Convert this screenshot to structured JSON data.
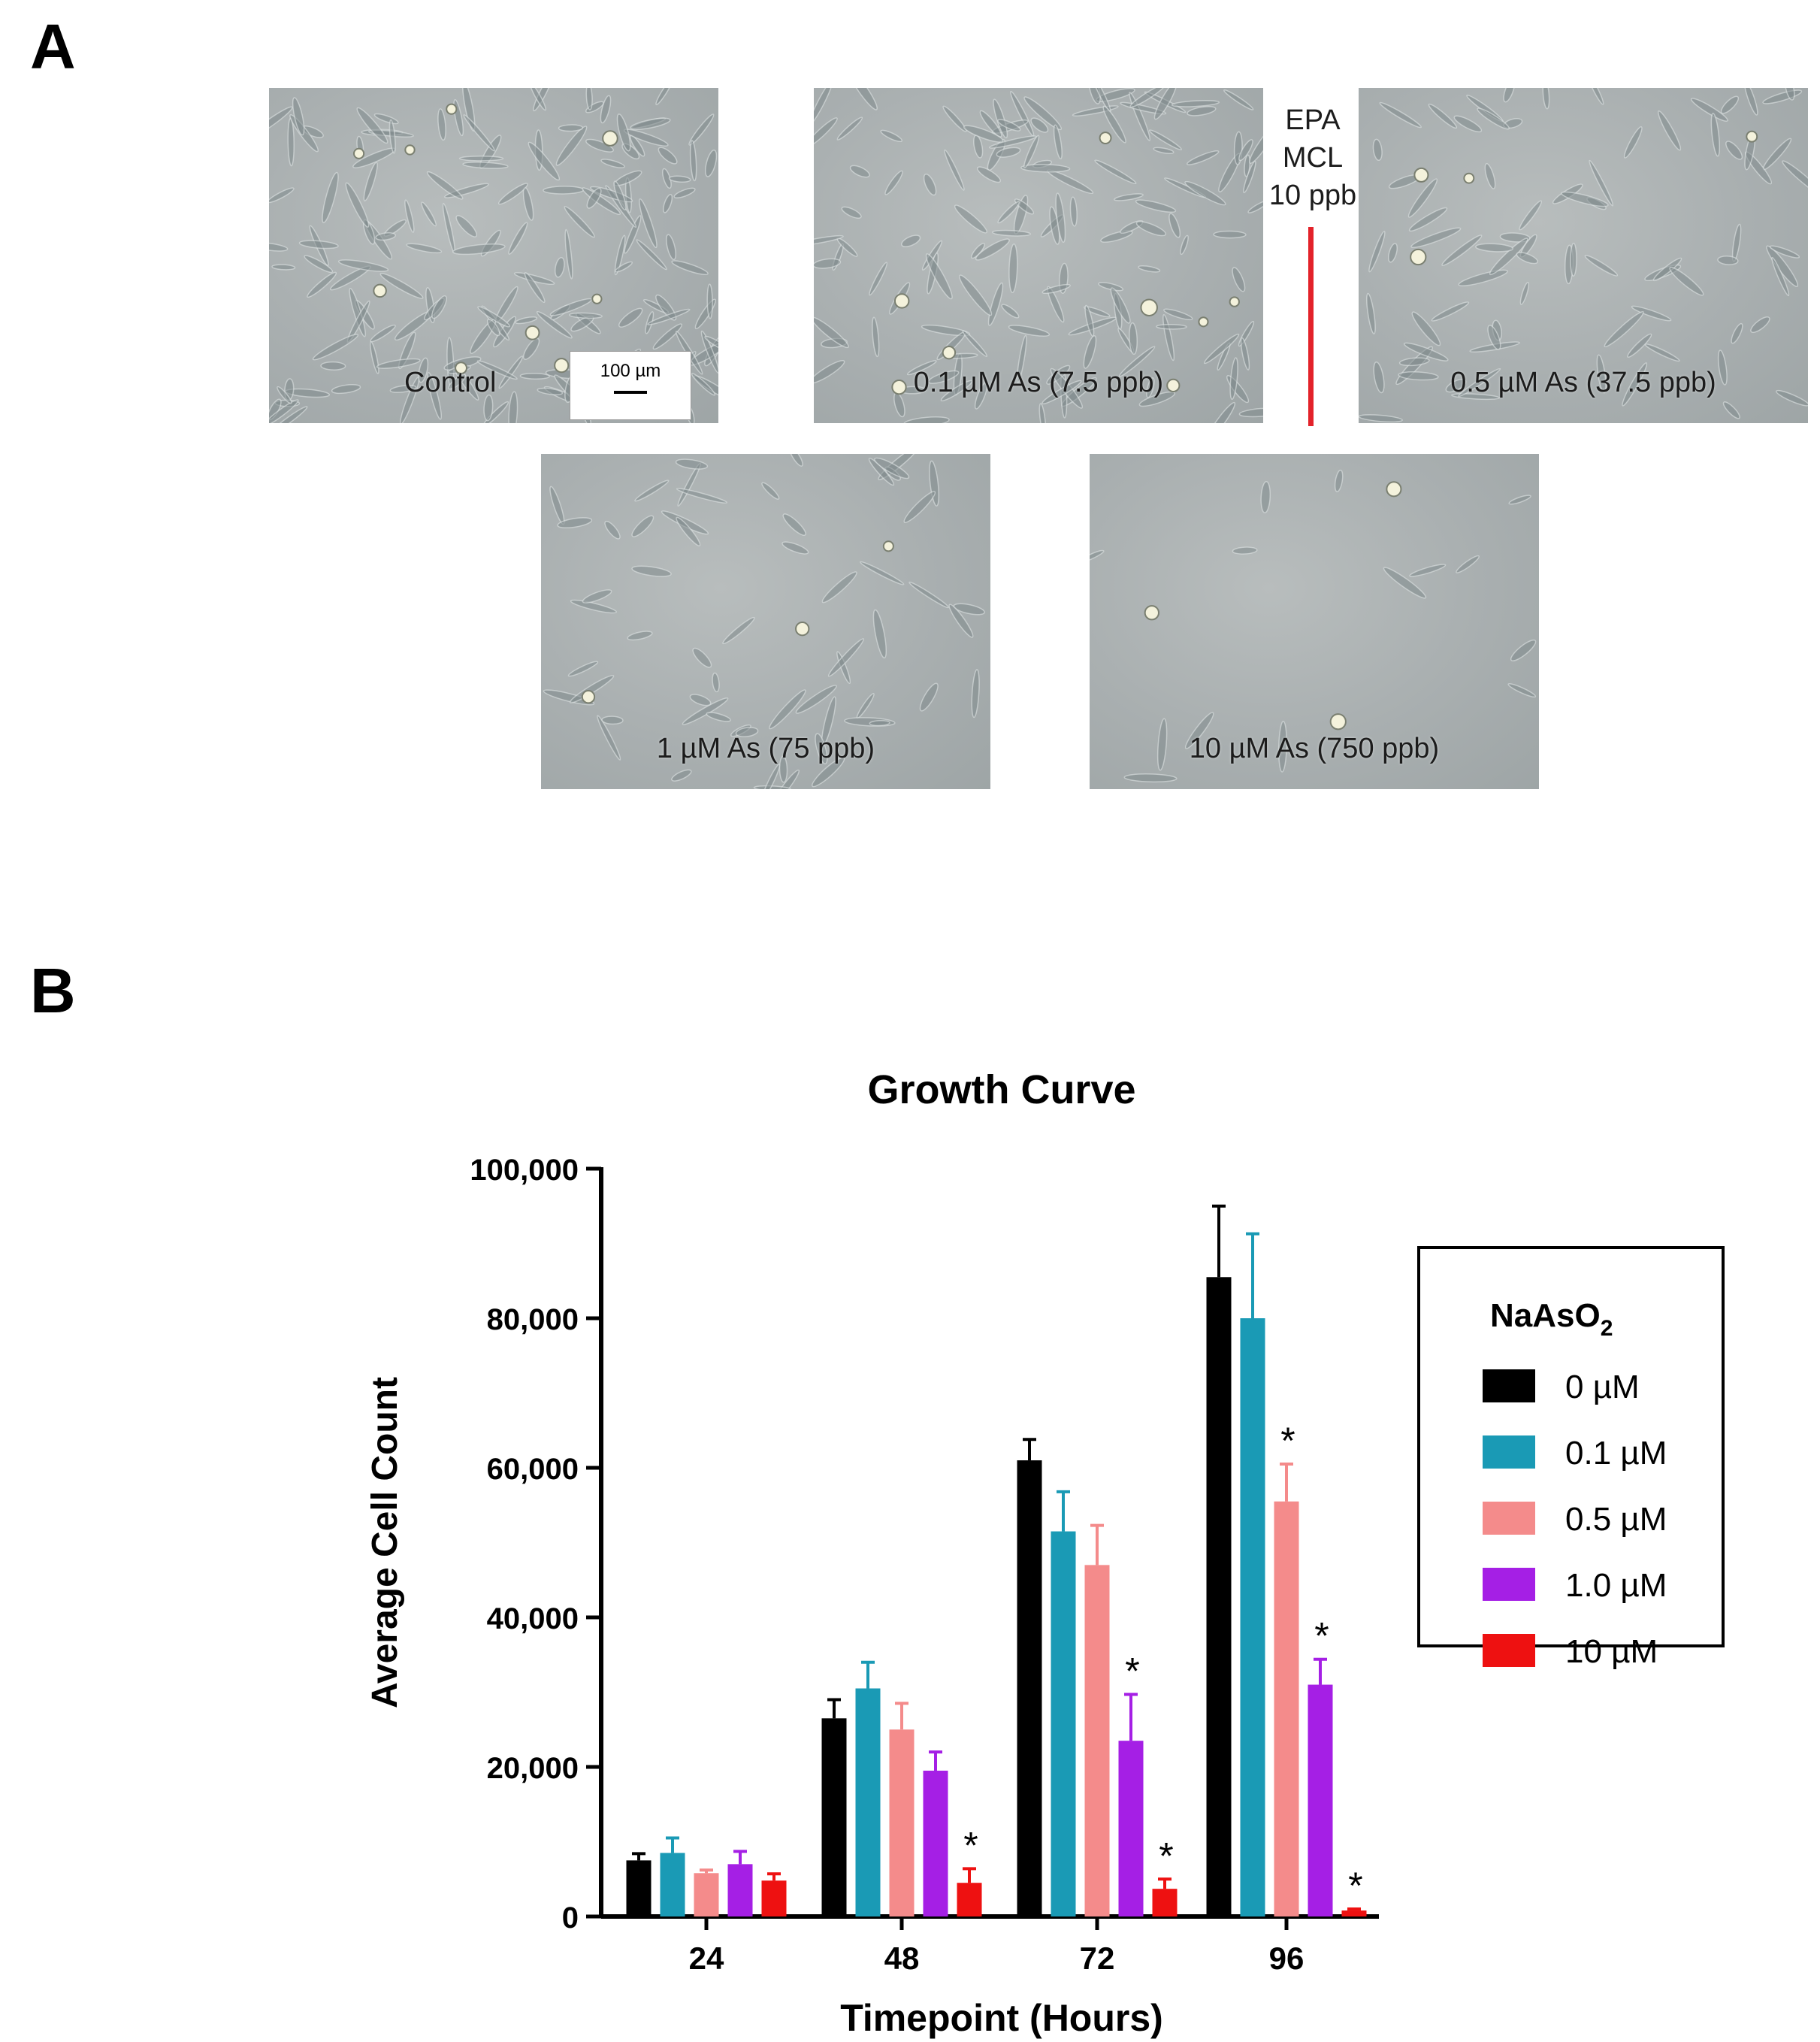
{
  "panel_a": {
    "letter": "A",
    "images": [
      {
        "caption": "Control"
      },
      {
        "caption": "0.1 µM As (7.5 ppb)"
      },
      {
        "caption": "0.5 µM As (37.5 ppb)"
      },
      {
        "caption": "1 µM As (75 ppb)"
      },
      {
        "caption": "10 µM As (750 ppb)"
      }
    ],
    "scale_bar": "100 µm",
    "mcl_lines": [
      "EPA",
      "MCL",
      "10 ppb"
    ],
    "colors": {
      "mcl_line": "#e3222a"
    }
  },
  "panel_b": {
    "letter": "B"
  },
  "chart_data": {
    "type": "bar",
    "title": "Growth Curve",
    "xlabel": "Timepoint (Hours)",
    "ylabel": "Average Cell Count",
    "categories": [
      "24",
      "48",
      "72",
      "96"
    ],
    "ylim": [
      0,
      100000
    ],
    "yticks": [
      0,
      20000,
      40000,
      60000,
      80000,
      100000
    ],
    "ytick_labels": [
      "0",
      "20,000",
      "40,000",
      "60,000",
      "80,000",
      "100,000"
    ],
    "legend_title": "NaAsO",
    "legend_title_sub": "2",
    "legend_position": "right",
    "significance_marker": "*",
    "series": [
      {
        "name": "0 µM",
        "color": "#000000",
        "values": [
          7500,
          26500,
          61000,
          85500
        ],
        "errors": [
          900,
          2500,
          2800,
          9500
        ],
        "significant": [
          false,
          false,
          false,
          false
        ]
      },
      {
        "name": "0.1 µM",
        "color": "#1a9ab5",
        "values": [
          8500,
          30500,
          51500,
          80000
        ],
        "errors": [
          2000,
          3500,
          5300,
          11300
        ],
        "significant": [
          false,
          false,
          false,
          false
        ]
      },
      {
        "name": "0.5 µM",
        "color": "#f48b8b",
        "values": [
          5800,
          25000,
          47000,
          55500
        ],
        "errors": [
          400,
          3500,
          5300,
          5000
        ],
        "significant": [
          false,
          false,
          false,
          true
        ]
      },
      {
        "name": "1.0 µM",
        "color": "#a51fe5",
        "values": [
          7000,
          19500,
          23500,
          31000
        ],
        "errors": [
          1700,
          2500,
          6200,
          3400
        ],
        "significant": [
          false,
          false,
          true,
          true
        ]
      },
      {
        "name": "10 µM",
        "color": "#ee1111",
        "values": [
          4800,
          4500,
          3700,
          800
        ],
        "errors": [
          900,
          1900,
          1300,
          200
        ],
        "significant": [
          false,
          true,
          true,
          true
        ]
      }
    ]
  }
}
